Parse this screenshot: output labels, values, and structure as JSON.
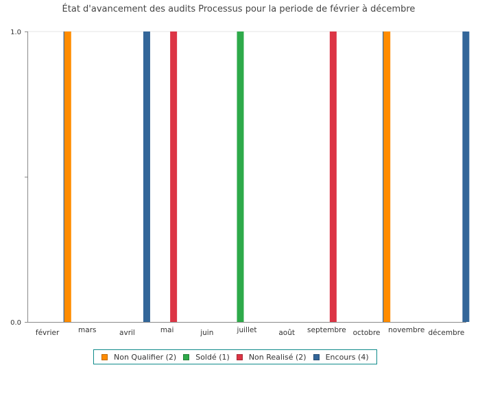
{
  "chart_data": {
    "type": "bar",
    "title": "État d'avancement des audits Processus pour la periode de février à décembre",
    "xlabel": "",
    "ylabel": "",
    "ylim": [
      0,
      1
    ],
    "y_ticks": [
      "0.0",
      "1.0"
    ],
    "grid": false,
    "legend_position": "bottom",
    "categories": [
      "février",
      "mars",
      "avril",
      "mai",
      "juin",
      "juillet",
      "août",
      "septembre",
      "octobre",
      "novembre",
      "décembre"
    ],
    "series": [
      {
        "name": "Non Qualifier (2)",
        "color": "#ff8c00",
        "values": [
          0,
          1,
          0,
          0,
          0,
          0,
          0,
          0,
          0,
          1,
          0
        ]
      },
      {
        "name": "Soldé (1)",
        "color": "#2eaa4a",
        "values": [
          0,
          0,
          0,
          0,
          0,
          1,
          0,
          0,
          0,
          0,
          0
        ]
      },
      {
        "name": "Non Realisé (2)",
        "color": "#dc3545",
        "values": [
          0,
          0,
          0,
          1,
          0,
          0,
          0,
          1,
          0,
          0,
          0
        ]
      },
      {
        "name": "Encours (4)",
        "color": "#336699",
        "values": [
          1,
          0,
          1,
          0,
          0,
          0,
          0,
          0,
          1,
          0,
          1
        ]
      }
    ]
  }
}
